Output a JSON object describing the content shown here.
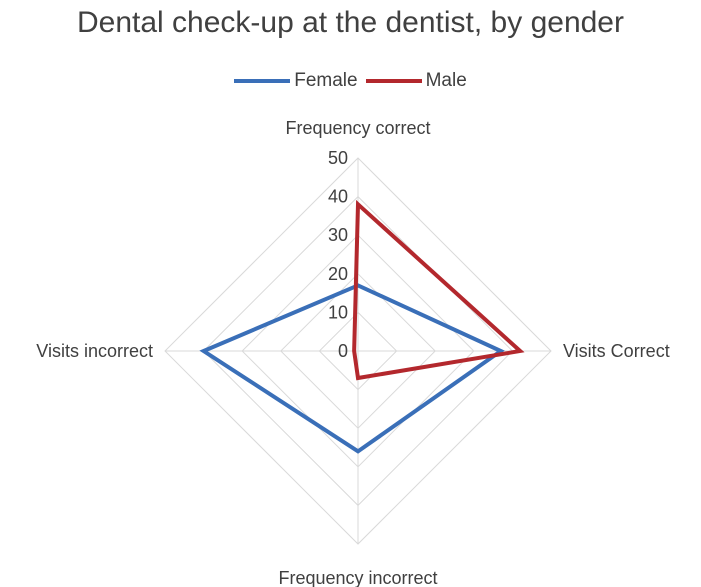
{
  "chart_data": {
    "type": "radar",
    "title": "Dental check-up at the dentist, by gender",
    "categories": [
      "Frequency correct",
      "Visits Correct",
      "Frequency incorrect",
      "Visits incorrect"
    ],
    "series": [
      {
        "name": "Female",
        "color": "#3a6fb8",
        "values": [
          17,
          37,
          26,
          40
        ]
      },
      {
        "name": "Male",
        "color": "#b3282d",
        "values": [
          38,
          42,
          7,
          1
        ]
      }
    ],
    "rlim": [
      0,
      50
    ],
    "ticks": [
      0,
      10,
      20,
      30,
      40,
      50
    ],
    "legend_position": "top"
  }
}
